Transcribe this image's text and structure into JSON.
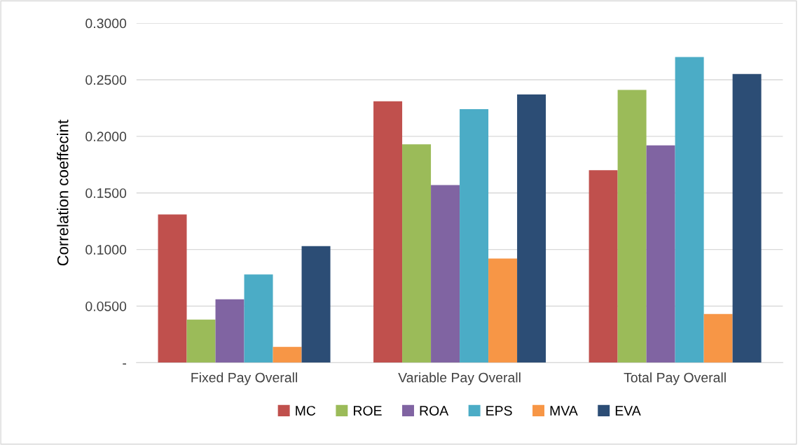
{
  "chart_data": {
    "type": "bar",
    "ylabel": "Correlation coeffecint",
    "categories": [
      "Fixed Pay Overall",
      "Variable Pay Overall",
      "Total Pay Overall"
    ],
    "series": [
      {
        "name": "MC",
        "color": "#c0504d",
        "values": [
          0.131,
          0.231,
          0.17
        ]
      },
      {
        "name": "ROE",
        "color": "#9bbb59",
        "values": [
          0.038,
          0.193,
          0.241
        ]
      },
      {
        "name": "ROA",
        "color": "#8064a2",
        "values": [
          0.056,
          0.157,
          0.192
        ]
      },
      {
        "name": "EPS",
        "color": "#4bacc6",
        "values": [
          0.078,
          0.224,
          0.27
        ]
      },
      {
        "name": "MVA",
        "color": "#f79646",
        "values": [
          0.014,
          0.092,
          0.043
        ]
      },
      {
        "name": "EVA",
        "color": "#2c4d75",
        "values": [
          0.103,
          0.237,
          0.255
        ]
      }
    ],
    "ylim": [
      0,
      0.3
    ],
    "yticks": [
      {
        "value": 0,
        "label": "-"
      },
      {
        "value": 0.05,
        "label": "0.0500"
      },
      {
        "value": 0.1,
        "label": "0.1000"
      },
      {
        "value": 0.15,
        "label": "0.1500"
      },
      {
        "value": 0.2,
        "label": "0.2000"
      },
      {
        "value": 0.25,
        "label": "0.2500"
      },
      {
        "value": 0.3,
        "label": "0.3000"
      }
    ],
    "grid": "y",
    "legend": "bottom"
  }
}
